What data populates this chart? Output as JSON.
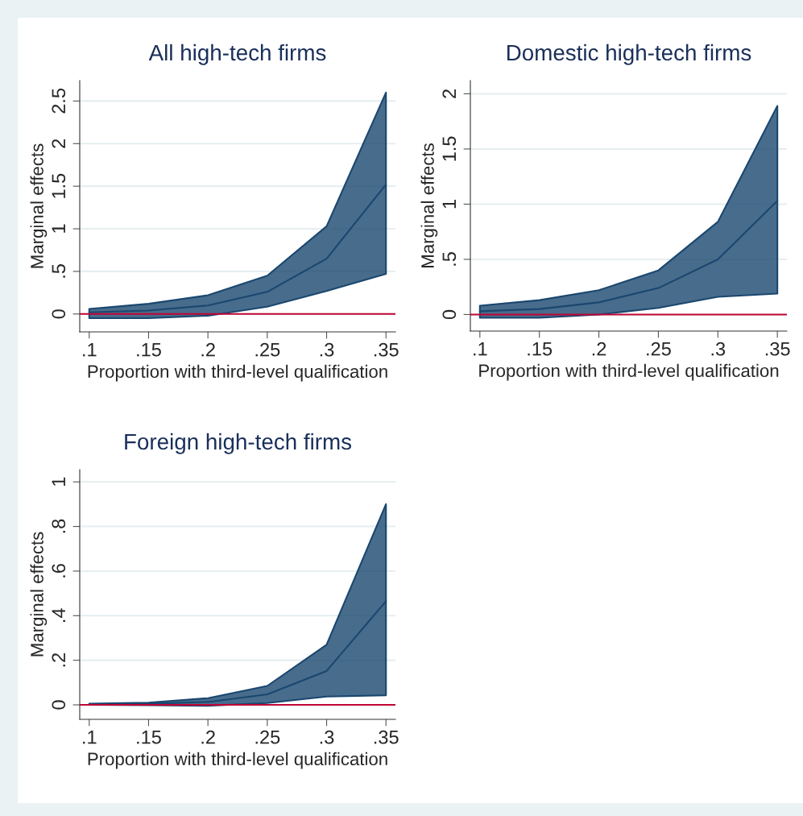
{
  "chart_data": [
    {
      "type": "line",
      "title": "All high-tech firms",
      "xlabel": "Proportion with third-level qualification",
      "ylabel": "Marginal effects",
      "x": [
        0.1,
        0.15,
        0.2,
        0.25,
        0.3,
        0.35
      ],
      "series": [
        {
          "color": "#1a476f",
          "values": [
            0.02,
            0.04,
            0.1,
            0.26,
            0.65,
            1.52
          ],
          "lower": [
            -0.05,
            -0.05,
            -0.02,
            0.085,
            0.27,
            0.47
          ],
          "upper": [
            0.06,
            0.12,
            0.22,
            0.45,
            1.03,
            2.6
          ]
        }
      ],
      "xlim": [
        0.092,
        0.358
      ],
      "xticks": [
        {
          "value": 0.1,
          "label": ".1"
        },
        {
          "value": 0.15,
          "label": ".15"
        },
        {
          "value": 0.2,
          "label": ".2"
        },
        {
          "value": 0.25,
          "label": ".25"
        },
        {
          "value": 0.3,
          "label": ".3"
        },
        {
          "value": 0.35,
          "label": ".35"
        }
      ],
      "ylim": [
        -0.21,
        2.74
      ],
      "yticks": [
        0,
        {
          "value": 0.5,
          "label": ".5"
        },
        1,
        1.5,
        2,
        2.5
      ],
      "ref_lines": [
        {
          "axis": "y",
          "value": 0,
          "color": "#c10534"
        }
      ],
      "grid": "y",
      "marker": "none",
      "line_style": "solid"
    },
    {
      "type": "line",
      "title": "Domestic high-tech firms",
      "xlabel": "Proportion with third-level qualification",
      "ylabel": "Marginal effects",
      "x": [
        0.1,
        0.15,
        0.2,
        0.25,
        0.3,
        0.35
      ],
      "series": [
        {
          "color": "#1a476f",
          "values": [
            0.03,
            0.05,
            0.11,
            0.24,
            0.5,
            1.03
          ],
          "lower": [
            -0.03,
            -0.03,
            0.0,
            0.06,
            0.16,
            0.19
          ],
          "upper": [
            0.08,
            0.13,
            0.22,
            0.4,
            0.84,
            1.89
          ]
        }
      ],
      "xlim": [
        0.092,
        0.358
      ],
      "xticks": [
        {
          "value": 0.1,
          "label": ".1"
        },
        {
          "value": 0.15,
          "label": ".15"
        },
        {
          "value": 0.2,
          "label": ".2"
        },
        {
          "value": 0.25,
          "label": ".25"
        },
        {
          "value": 0.3,
          "label": ".3"
        },
        {
          "value": 0.35,
          "label": ".35"
        }
      ],
      "ylim": [
        -0.15,
        2.12
      ],
      "yticks": [
        0,
        {
          "value": 0.5,
          "label": ".5"
        },
        1,
        1.5,
        2
      ],
      "ref_lines": [
        {
          "axis": "y",
          "value": 0,
          "color": "#c10534"
        }
      ],
      "grid": "y",
      "marker": "none",
      "line_style": "solid"
    },
    {
      "type": "line",
      "title": "Foreign high-tech firms",
      "xlabel": "Proportion with third-level qualification",
      "ylabel": "Marginal effects",
      "x": [
        0.1,
        0.15,
        0.2,
        0.25,
        0.3,
        0.35
      ],
      "series": [
        {
          "color": "#1a476f",
          "values": [
            0.001,
            0.005,
            0.013,
            0.047,
            0.152,
            0.465
          ],
          "lower": [
            0.0,
            -0.002,
            -0.004,
            0.008,
            0.037,
            0.043
          ],
          "upper": [
            0.005,
            0.01,
            0.03,
            0.085,
            0.27,
            0.9
          ]
        }
      ],
      "xlim": [
        0.092,
        0.358
      ],
      "xticks": [
        {
          "value": 0.1,
          "label": ".1"
        },
        {
          "value": 0.15,
          "label": ".15"
        },
        {
          "value": 0.2,
          "label": ".2"
        },
        {
          "value": 0.25,
          "label": ".25"
        },
        {
          "value": 0.3,
          "label": ".3"
        },
        {
          "value": 0.35,
          "label": ".35"
        }
      ],
      "ylim": [
        -0.065,
        1.055
      ],
      "yticks": [
        0,
        {
          "value": 0.2,
          "label": ".2"
        },
        {
          "value": 0.4,
          "label": ".4"
        },
        {
          "value": 0.6,
          "label": ".6"
        },
        {
          "value": 0.8,
          "label": ".8"
        },
        1
      ],
      "ref_lines": [
        {
          "axis": "y",
          "value": 0,
          "color": "#c10534"
        }
      ],
      "grid": "y",
      "marker": "none",
      "line_style": "solid"
    }
  ]
}
